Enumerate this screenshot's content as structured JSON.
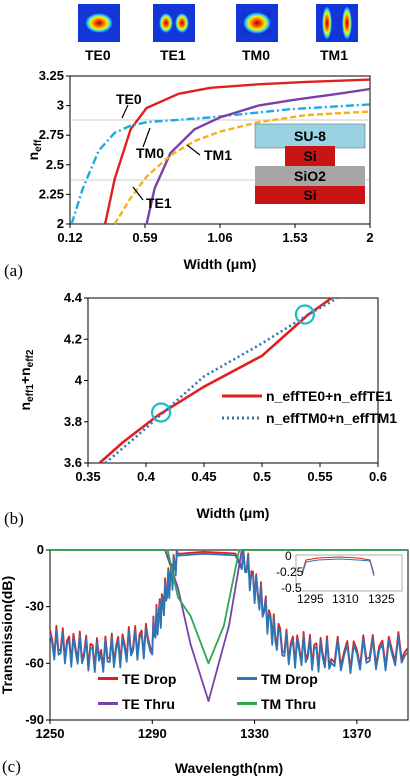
{
  "chart_data": [
    {
      "panel": "(a)",
      "type": "line",
      "xlabel": "Width (μm)",
      "ylabel": "n_eff",
      "xlim": [
        0.12,
        2
      ],
      "ylim": [
        2,
        3.25
      ],
      "xticks": [
        "0.12",
        "0.59",
        "1.06",
        "1.53",
        "2"
      ],
      "yticks": [
        "2",
        "2.25",
        "2.5",
        "2.75",
        "3",
        "3.25"
      ],
      "mode_labels": [
        "TE0",
        "TE1",
        "TM0",
        "TM1"
      ],
      "curve_labels": [
        "TE0",
        "TM0",
        "TM1",
        "TE1"
      ],
      "inset_layers": [
        "SU-8",
        "Si",
        "SiO2",
        "Si"
      ],
      "colors": {
        "TE0": "#e0201f",
        "TE1": "#f5b21b",
        "TM0": "#1ea9e1",
        "TM1": "#7b3fa8"
      },
      "series": [
        {
          "name": "TE0",
          "x": [
            0.34,
            0.4,
            0.5,
            0.6,
            0.8,
            1.0,
            1.3,
            1.6,
            2.0
          ],
          "y": [
            2.0,
            2.38,
            2.8,
            2.98,
            3.1,
            3.15,
            3.18,
            3.2,
            3.22
          ]
        },
        {
          "name": "TM0",
          "x": [
            0.13,
            0.2,
            0.3,
            0.4,
            0.5,
            0.6,
            1.0,
            1.5,
            2.0
          ],
          "y": [
            2.0,
            2.3,
            2.62,
            2.77,
            2.83,
            2.86,
            2.9,
            2.97,
            3.01
          ]
        },
        {
          "name": "TM1",
          "x": [
            0.6,
            0.65,
            0.75,
            0.9,
            1.06,
            1.3,
            1.53,
            1.8,
            2.0
          ],
          "y": [
            2.0,
            2.3,
            2.6,
            2.8,
            2.9,
            3.0,
            3.05,
            3.1,
            3.14
          ]
        },
        {
          "name": "TE1",
          "x": [
            0.4,
            0.5,
            0.6,
            0.75,
            0.9,
            1.06,
            1.3,
            1.6,
            2.0
          ],
          "y": [
            2.0,
            2.22,
            2.4,
            2.58,
            2.7,
            2.78,
            2.86,
            2.92,
            2.95
          ]
        }
      ]
    },
    {
      "panel": "(b)",
      "type": "line",
      "xlabel": "Width (μm)",
      "ylabel": "n_eff1+n_eff2",
      "xlim": [
        0.35,
        0.6
      ],
      "ylim": [
        3.6,
        4.4
      ],
      "xticks": [
        "0.35",
        "0.4",
        "0.45",
        "0.5",
        "0.55",
        "0.6"
      ],
      "yticks": [
        "3.6",
        "3.8",
        "4",
        "4.2",
        "4.4"
      ],
      "legend": [
        "n_effTE0+n_effTE1",
        "n_effTM0+n_effTM1"
      ],
      "series": [
        {
          "name": "n_effTE0+n_effTE1",
          "color": "#e0201f",
          "x": [
            0.36,
            0.38,
            0.41,
            0.45,
            0.5,
            0.54,
            0.56
          ],
          "y": [
            3.6,
            3.7,
            3.83,
            3.97,
            4.12,
            4.32,
            4.4
          ]
        },
        {
          "name": "n_effTM0+n_effTM1",
          "color": "#2e75b6",
          "x": [
            0.365,
            0.39,
            0.42,
            0.45,
            0.5,
            0.54,
            0.565
          ],
          "y": [
            3.6,
            3.72,
            3.87,
            4.02,
            4.18,
            4.32,
            4.4
          ]
        }
      ],
      "markers": [
        {
          "x": 0.413,
          "y": 3.845
        },
        {
          "x": 0.537,
          "y": 4.32
        }
      ]
    },
    {
      "panel": "(c)",
      "type": "line",
      "xlabel": "Wavelength(nm)",
      "ylabel": "Transmission(dB)",
      "xlim": [
        1250,
        1390
      ],
      "ylim": [
        -90,
        0
      ],
      "xticks": [
        "1250",
        "1290",
        "1330",
        "1370"
      ],
      "yticks": [
        "0",
        "-30",
        "-60",
        "-90"
      ],
      "legend": [
        "TE Drop",
        "TM Drop",
        "TE Thru",
        "TM Thru"
      ],
      "series": [
        {
          "name": "TE Drop",
          "color": "#e0201f",
          "x": [
            1250,
            1270,
            1290,
            1300,
            1310,
            1325,
            1340,
            1360,
            1390
          ],
          "y": [
            -48,
            -55,
            -45,
            -2,
            -1,
            -2,
            -50,
            -55,
            -52
          ]
        },
        {
          "name": "TM Drop",
          "color": "#2e75b6",
          "x": [
            1250,
            1270,
            1290,
            1300,
            1310,
            1325,
            1340,
            1360,
            1390
          ],
          "y": [
            -50,
            -57,
            -47,
            -3,
            -2,
            -3,
            -52,
            -57,
            -54
          ]
        },
        {
          "name": "TE Thru",
          "color": "#7b3fa8",
          "x": [
            1250,
            1295,
            1300,
            1305,
            1312,
            1320,
            1325,
            1390
          ],
          "y": [
            0,
            0,
            -20,
            -50,
            -80,
            -40,
            0,
            0
          ]
        },
        {
          "name": "TM Thru",
          "color": "#2ca84e",
          "x": [
            1250,
            1296,
            1300,
            1305,
            1312,
            1318,
            1324,
            1390
          ],
          "y": [
            0,
            0,
            -25,
            -35,
            -60,
            -40,
            0,
            0
          ]
        }
      ],
      "inset": {
        "xticks": [
          "1295",
          "1310",
          "1325"
        ],
        "yticks": [
          "0",
          "-0.25",
          "-0.5"
        ]
      }
    }
  ],
  "colors": {
    "accent": "#e0201f",
    "blue": "#2e75b6"
  }
}
